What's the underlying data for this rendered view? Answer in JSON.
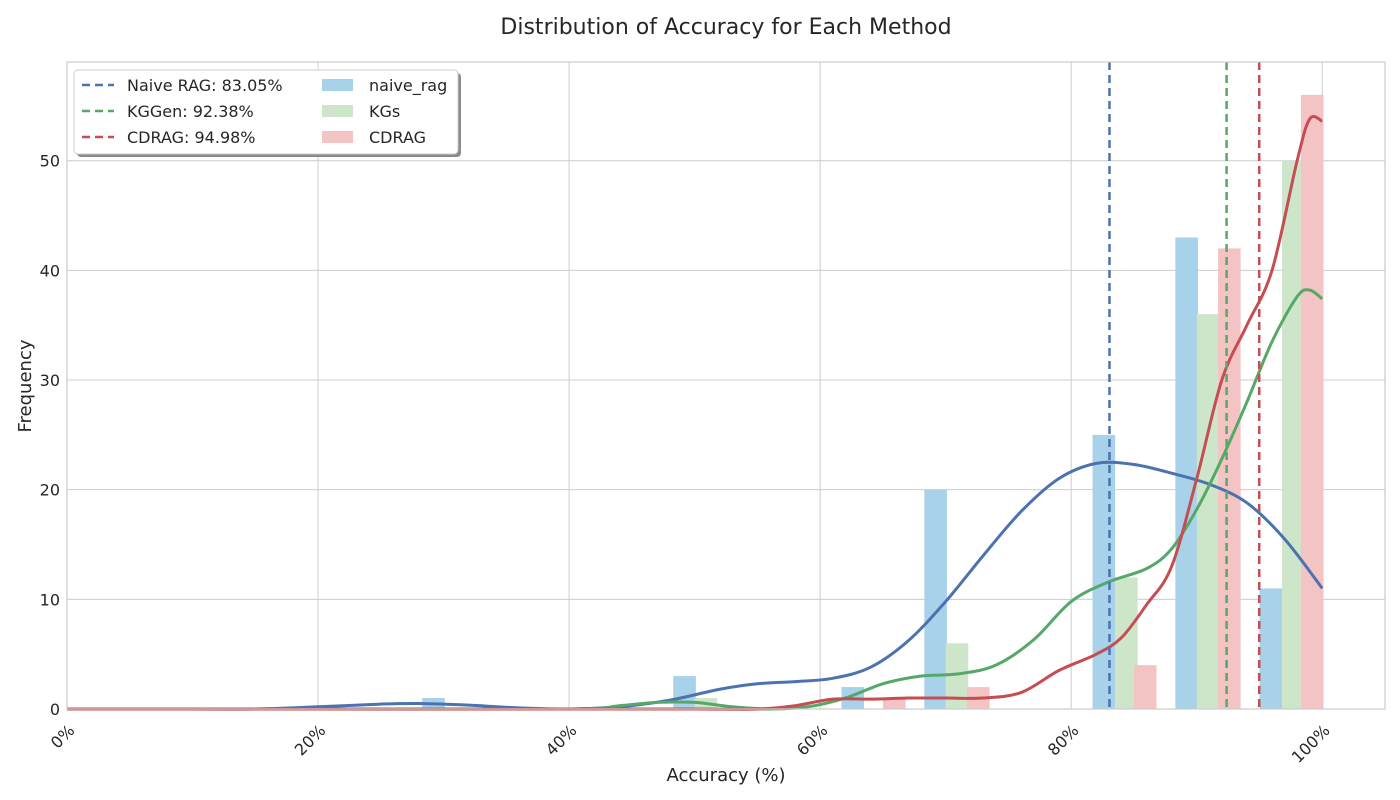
{
  "chart_data": {
    "type": "bar",
    "title": "Distribution of Accuracy for Each Method",
    "xlabel": "Accuracy (%)",
    "ylabel": "Frequency",
    "xlim": [
      0,
      105
    ],
    "ylim": [
      0,
      59
    ],
    "x_ticks": [
      0,
      20,
      40,
      60,
      80,
      100
    ],
    "x_tick_labels": [
      "0%",
      "20%",
      "40%",
      "60%",
      "80%",
      "100%"
    ],
    "y_ticks": [
      0,
      10,
      20,
      30,
      40,
      50
    ],
    "y_tick_labels": [
      "0",
      "10",
      "20",
      "30",
      "40",
      "50"
    ],
    "grid": true,
    "legend_position": "top-left",
    "bin_width": 1.8,
    "bar_series": [
      {
        "name": "naive_rag",
        "color": "#a8d1ea",
        "bins": [
          [
            28.3,
            1
          ],
          [
            48.3,
            3
          ],
          [
            61.7,
            2
          ],
          [
            68.3,
            20
          ],
          [
            81.7,
            25
          ],
          [
            88.3,
            43
          ],
          [
            95.0,
            11
          ]
        ]
      },
      {
        "name": "KGs",
        "color": "#cde5c9",
        "bins": [
          [
            50.0,
            1
          ],
          [
            70.0,
            6
          ],
          [
            83.5,
            12
          ],
          [
            90.0,
            36
          ],
          [
            96.8,
            50
          ]
        ]
      },
      {
        "name": "CDRAG",
        "color": "#f4c4c4",
        "bins": [
          [
            65.0,
            1
          ],
          [
            71.7,
            2
          ],
          [
            85.0,
            4
          ],
          [
            91.7,
            42
          ],
          [
            98.3,
            56
          ]
        ]
      }
    ],
    "kde_series": [
      {
        "name": "naive_rag",
        "color": "#4c72b0",
        "points": [
          [
            0,
            0
          ],
          [
            10,
            0
          ],
          [
            15,
            0
          ],
          [
            20,
            0.2
          ],
          [
            25,
            0.45
          ],
          [
            28,
            0.5
          ],
          [
            32,
            0.35
          ],
          [
            36,
            0.1
          ],
          [
            40,
            0
          ],
          [
            44,
            0.2
          ],
          [
            48,
            0.8
          ],
          [
            52,
            1.8
          ],
          [
            55,
            2.3
          ],
          [
            58,
            2.5
          ],
          [
            61,
            2.8
          ],
          [
            64,
            3.8
          ],
          [
            67,
            6.2
          ],
          [
            70,
            9.8
          ],
          [
            73,
            14
          ],
          [
            76,
            18
          ],
          [
            79,
            21
          ],
          [
            82,
            22.4
          ],
          [
            85,
            22.3
          ],
          [
            88,
            21.5
          ],
          [
            91,
            20.5
          ],
          [
            94,
            18.8
          ],
          [
            97,
            15.5
          ],
          [
            100,
            11
          ]
        ]
      },
      {
        "name": "KGs",
        "color": "#55a868",
        "points": [
          [
            0,
            0
          ],
          [
            20,
            0
          ],
          [
            40,
            0
          ],
          [
            44,
            0.3
          ],
          [
            47,
            0.6
          ],
          [
            50,
            0.6
          ],
          [
            53,
            0.2
          ],
          [
            56,
            0
          ],
          [
            59,
            0.2
          ],
          [
            62,
            1
          ],
          [
            65,
            2.3
          ],
          [
            68,
            3
          ],
          [
            71,
            3.2
          ],
          [
            74,
            4
          ],
          [
            77,
            6.3
          ],
          [
            80,
            9.8
          ],
          [
            83,
            11.6
          ],
          [
            86,
            12.8
          ],
          [
            88,
            14.6
          ],
          [
            90,
            18.2
          ],
          [
            92,
            22.8
          ],
          [
            94,
            28
          ],
          [
            96,
            33.5
          ],
          [
            98,
            37.6
          ],
          [
            99,
            38.2
          ],
          [
            100,
            37.4
          ]
        ]
      },
      {
        "name": "CDRAG",
        "color": "#c44e52",
        "points": [
          [
            0,
            0
          ],
          [
            20,
            0
          ],
          [
            40,
            0
          ],
          [
            50,
            0
          ],
          [
            55,
            0
          ],
          [
            58,
            0.3
          ],
          [
            61,
            0.9
          ],
          [
            64,
            0.9
          ],
          [
            67,
            1
          ],
          [
            70,
            1
          ],
          [
            73,
            1
          ],
          [
            76,
            1.5
          ],
          [
            79,
            3.5
          ],
          [
            82,
            5
          ],
          [
            84,
            6.5
          ],
          [
            86,
            9.5
          ],
          [
            88,
            13
          ],
          [
            90,
            21
          ],
          [
            92,
            30
          ],
          [
            94,
            35
          ],
          [
            96,
            40
          ],
          [
            98,
            50
          ],
          [
            99,
            53.8
          ],
          [
            100,
            53.6
          ]
        ]
      }
    ],
    "mean_lines": [
      {
        "label": "Naive RAG: 83.05%",
        "value": 83.05,
        "color": "#4c72b0"
      },
      {
        "label": "KGGen: 92.38%",
        "value": 92.38,
        "color": "#55a868"
      },
      {
        "label": "CDRAG: 94.98%",
        "value": 94.98,
        "color": "#c44e52"
      }
    ]
  }
}
